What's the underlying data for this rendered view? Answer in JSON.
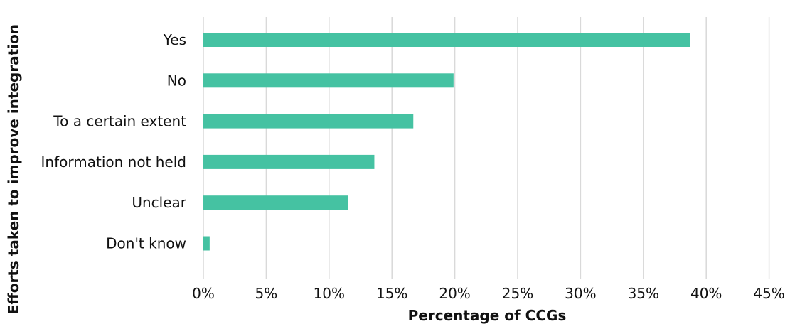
{
  "chart_data": {
    "type": "bar",
    "orientation": "horizontal",
    "categories": [
      "Yes",
      "No",
      "To a certain extent",
      "Information not held",
      "Unclear",
      "Don't know"
    ],
    "values": [
      38.7,
      19.9,
      16.7,
      13.6,
      11.5,
      0.5
    ],
    "unit": "%",
    "xlabel": "Percentage of CCGs",
    "ylabel": "Efforts taken to improve integration",
    "xlim": [
      0,
      45
    ],
    "xticks": [
      0,
      5,
      10,
      15,
      20,
      25,
      30,
      35,
      40,
      45
    ],
    "xtick_labels": [
      "0%",
      "5%",
      "10%",
      "15%",
      "20%",
      "25%",
      "30%",
      "35%",
      "40%",
      "45%"
    ],
    "bar_color": "#45c2a2",
    "gridlines": "vertical",
    "legend": "none"
  }
}
